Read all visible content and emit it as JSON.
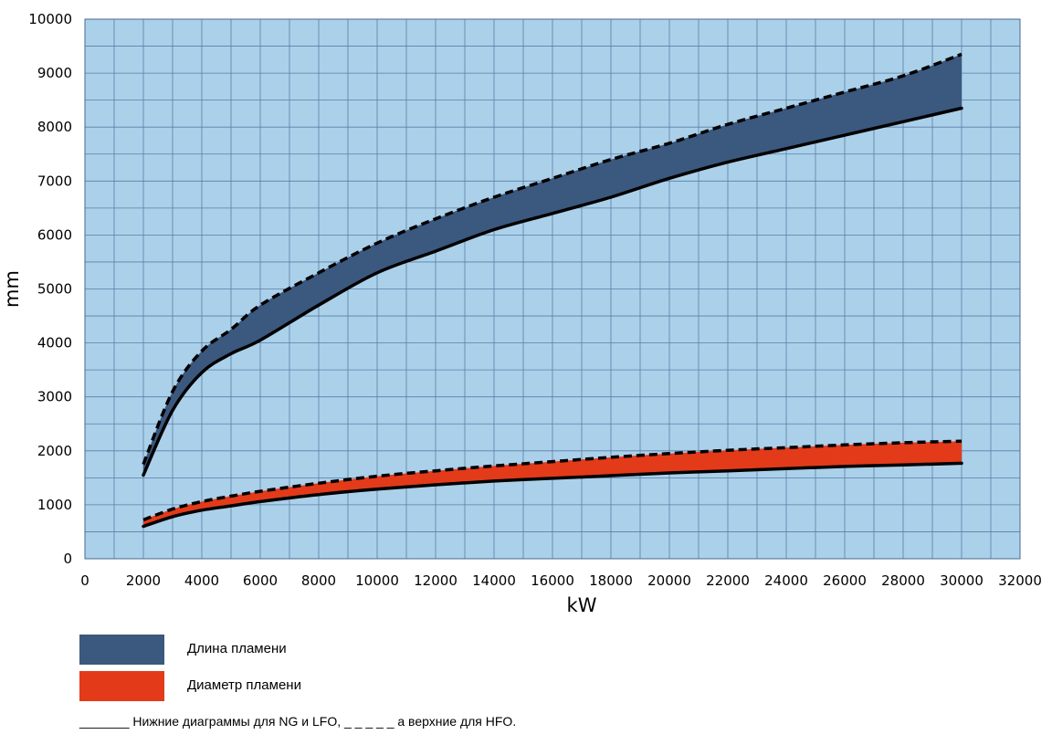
{
  "chart_data": {
    "type": "area",
    "title": "",
    "xlabel": "kW",
    "ylabel": "mm",
    "xlim": [
      0,
      32000
    ],
    "ylim": [
      0,
      10000
    ],
    "x_ticks": [
      0,
      2000,
      4000,
      6000,
      8000,
      10000,
      12000,
      14000,
      16000,
      18000,
      20000,
      22000,
      24000,
      26000,
      28000,
      30000,
      32000
    ],
    "y_ticks": [
      0,
      1000,
      2000,
      3000,
      4000,
      5000,
      6000,
      7000,
      8000,
      9000,
      10000
    ],
    "grid": true,
    "background_color": "#abd0ea",
    "grid_color": "#5b7ea6",
    "legend_position": "below",
    "x": [
      2000,
      3000,
      4000,
      5000,
      6000,
      8000,
      10000,
      12000,
      14000,
      16000,
      18000,
      20000,
      22000,
      24000,
      26000,
      28000,
      30000
    ],
    "bands": [
      {
        "name": "Длина пламени",
        "color": "#3b587e",
        "lower": [
          1550,
          2750,
          3450,
          3800,
          4050,
          4700,
          5300,
          5700,
          6100,
          6400,
          6700,
          7050,
          7350,
          7600,
          7850,
          8100,
          8350
        ],
        "upper": [
          1750,
          3100,
          3850,
          4250,
          4700,
          5300,
          5850,
          6300,
          6700,
          7050,
          7400,
          7700,
          8050,
          8350,
          8650,
          8950,
          9350
        ]
      },
      {
        "name": "Диаметр пламени",
        "color": "#e33a1a",
        "lower": [
          600,
          780,
          900,
          980,
          1060,
          1190,
          1290,
          1370,
          1440,
          1490,
          1540,
          1590,
          1630,
          1670,
          1710,
          1740,
          1770
        ],
        "upper": [
          720,
          920,
          1060,
          1160,
          1250,
          1400,
          1530,
          1630,
          1720,
          1800,
          1880,
          1950,
          2010,
          2060,
          2110,
          2150,
          2180
        ]
      }
    ],
    "footnote": "_______ Нижние диаграммы для NG и LFO, _ _ _ _ _ а верхние для HFO."
  }
}
